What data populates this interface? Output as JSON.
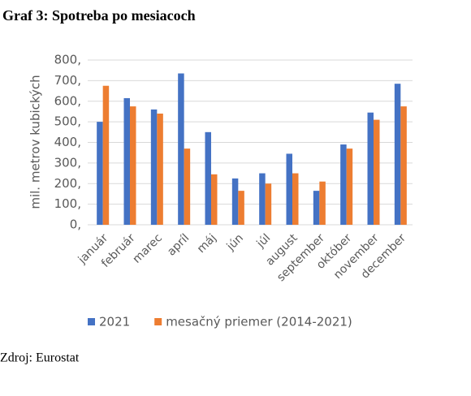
{
  "chart_data": {
    "type": "bar",
    "title": "Graf 3: Spotreba po mesiacoch",
    "y_label": "mil. metrov kubických",
    "source": "Zdroj: Eurostat",
    "categories": [
      "január",
      "február",
      "marec",
      "apríl",
      "máj",
      "jún",
      "júl",
      "august",
      "september",
      "október",
      "november",
      "december"
    ],
    "series": [
      {
        "name": "2021",
        "color": "#4472c4",
        "values": [
          500,
          615,
          560,
          735,
          450,
          225,
          250,
          345,
          165,
          390,
          545,
          685
        ]
      },
      {
        "name": "mesačný priemer (2014-2021)",
        "color": "#ed7d31",
        "values": [
          675,
          575,
          540,
          370,
          245,
          165,
          200,
          250,
          210,
          370,
          510,
          575
        ]
      }
    ],
    "ylim": [
      0,
      800
    ],
    "yticks": [
      {
        "value": 0,
        "label": "0,"
      },
      {
        "value": 100,
        "label": "100,"
      },
      {
        "value": 200,
        "label": "200,"
      },
      {
        "value": 300,
        "label": "300,"
      },
      {
        "value": 400,
        "label": "400,"
      },
      {
        "value": 500,
        "label": "500,"
      },
      {
        "value": 600,
        "label": "600,"
      },
      {
        "value": 700,
        "label": "700,"
      },
      {
        "value": 800,
        "label": "800,"
      }
    ],
    "grid": true,
    "legend": "bottom"
  }
}
